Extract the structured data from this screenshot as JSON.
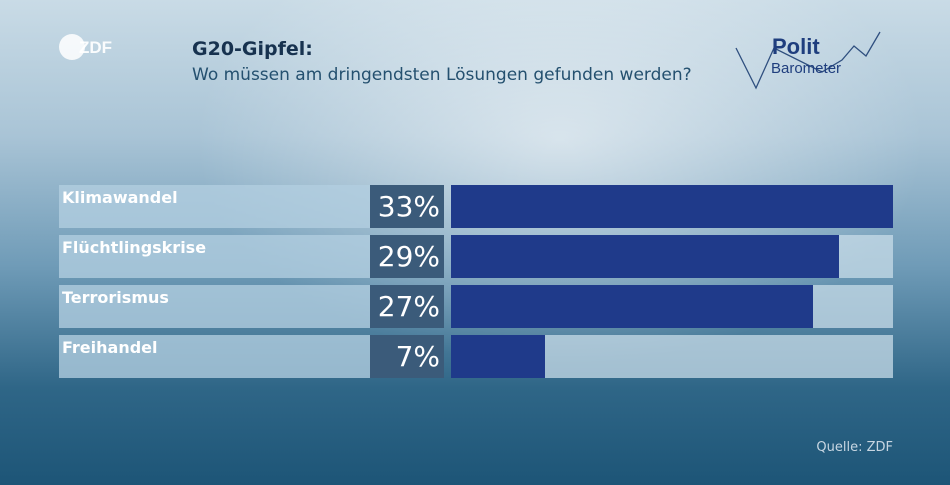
{
  "header": {
    "brand": "ZDF",
    "title": "G20-Gipfel:",
    "subtitle": "Wo müssen am dringendsten Lösungen gefunden werden?",
    "logo_line1": "Polit",
    "logo_line2": "Barometer"
  },
  "footer": {
    "source": "Quelle: ZDF"
  },
  "colors": {
    "bar": "#1f3a8a",
    "percent_box": "#3b5b7a",
    "title": "#17324f"
  },
  "chart_data": {
    "type": "bar",
    "orientation": "horizontal",
    "categories": [
      "Klimawandel",
      "Flüchtlingskrise",
      "Terrorismus",
      "Freihandel"
    ],
    "values": [
      33,
      29,
      27,
      7
    ],
    "value_labels": [
      "33%",
      "29%",
      "27%",
      "7%"
    ],
    "unit": "%",
    "xlim": [
      0,
      33
    ]
  }
}
